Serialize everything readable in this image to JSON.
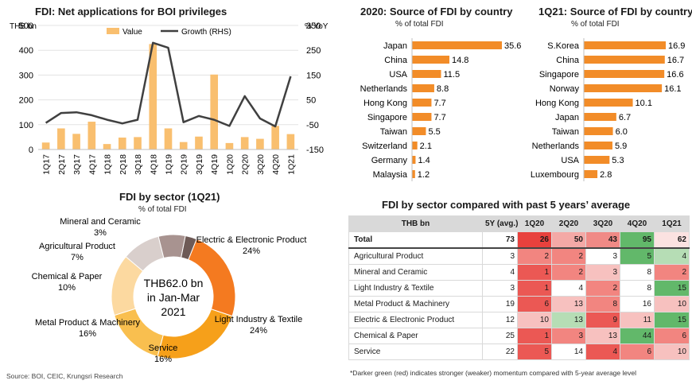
{
  "source": "Source: BOI, CEIC, Krungsri Research",
  "chart_data": [
    {
      "id": "net_applications",
      "type": "bar",
      "title": "FDI: Net applications for BOI privileges",
      "left_axis_label": "THB bn",
      "right_axis_label": "% YoY",
      "categories": [
        "1Q17",
        "2Q17",
        "3Q17",
        "4Q17",
        "1Q18",
        "2Q18",
        "3Q18",
        "4Q18",
        "1Q19",
        "2Q19",
        "3Q19",
        "4Q19",
        "1Q20",
        "2Q20",
        "3Q20",
        "4Q20",
        "1Q21"
      ],
      "ylim": [
        0,
        500
      ],
      "y2lim": [
        -150,
        350
      ],
      "yticks": [
        0,
        100,
        200,
        300,
        400,
        500
      ],
      "y2ticks": [
        -150,
        -50,
        50,
        150,
        250,
        350
      ],
      "series": [
        {
          "name": "Value",
          "type": "bar",
          "axis": "left",
          "color": "#f9bf6f",
          "values": [
            28,
            85,
            63,
            112,
            22,
            48,
            50,
            425,
            85,
            30,
            52,
            302,
            26,
            50,
            43,
            95,
            62
          ]
        },
        {
          "name": "Growth (RHS)",
          "type": "line",
          "axis": "right",
          "color": "#404040",
          "values": [
            -43,
            -3,
            0,
            -12,
            -30,
            -45,
            -30,
            280,
            260,
            -40,
            -15,
            -30,
            -55,
            65,
            -25,
            -57,
            145
          ]
        }
      ]
    },
    {
      "id": "source_2020",
      "type": "bar",
      "orientation": "horizontal",
      "title": "2020: Source of FDI by country",
      "subtitle": "% of total FDI",
      "color": "#f28c28",
      "categories": [
        "Japan",
        "China",
        "USA",
        "Netherlands",
        "Hong Kong",
        "Singapore",
        "Taiwan",
        "Switzerland",
        "Germany",
        "Malaysia"
      ],
      "values": [
        35.6,
        14.8,
        11.5,
        8.8,
        7.7,
        7.7,
        5.5,
        2.1,
        1.4,
        1.2
      ],
      "labels": [
        "35.6",
        "14.8",
        "11.5",
        "8.8",
        "7.7",
        "7.7",
        "5.5",
        "2.1",
        "1.4",
        "1.2"
      ]
    },
    {
      "id": "source_1q21",
      "type": "bar",
      "orientation": "horizontal",
      "title": "1Q21: Source of FDI by country",
      "subtitle": "% of total FDI",
      "color": "#f28c28",
      "categories": [
        "S.Korea",
        "China",
        "Singapore",
        "Norway",
        "Hong Kong",
        "Japan",
        "Taiwan",
        "Netherlands",
        "USA",
        "Luxembourg"
      ],
      "values": [
        16.9,
        16.7,
        16.6,
        16.1,
        10.1,
        6.7,
        6.0,
        5.9,
        5.3,
        2.8
      ],
      "labels": [
        "16.9",
        "16.7",
        "16.6",
        "16.1",
        "10.1",
        "6.7",
        "6.0",
        "5.9",
        "5.3",
        "2.8"
      ]
    },
    {
      "id": "sector_1q21",
      "type": "pie",
      "title": "FDI by sector (1Q21)",
      "subtitle": "% of total FDI",
      "center_text": [
        "THB62.0 bn",
        "in Jan-Mar",
        "2021"
      ],
      "slices": [
        {
          "name": "Electric & Electronic Product",
          "value": 24,
          "label": "24%",
          "color": "#f47a20"
        },
        {
          "name": "Light Industry & Textile",
          "value": 24,
          "label": "24%",
          "color": "#f6a01a"
        },
        {
          "name": "Service",
          "value": 16,
          "label": "16%",
          "color": "#f9bf4f"
        },
        {
          "name": "Metal Product & Machinery",
          "value": 16,
          "label": "16%",
          "color": "#fcd9a0"
        },
        {
          "name": "Chemical & Paper",
          "value": 10,
          "label": "10%",
          "color": "#d9cfcc"
        },
        {
          "name": "Agricultural Product",
          "value": 7,
          "label": "7%",
          "color": "#a89390"
        },
        {
          "name": "Mineral and Ceramic",
          "value": 3,
          "label": "3%",
          "color": "#6e5a56"
        }
      ]
    },
    {
      "id": "sector_vs_avg",
      "type": "table",
      "title": "FDI by sector compared with past 5 years’ average",
      "columns": [
        "THB bn",
        "5Y (avg.)",
        "1Q20",
        "2Q20",
        "3Q20",
        "4Q20",
        "1Q21"
      ],
      "rows": [
        {
          "label": "Total",
          "avg": "73",
          "cells": [
            {
              "v": "26",
              "c": "#e8413d"
            },
            {
              "v": "50",
              "c": "#f4a9a6"
            },
            {
              "v": "43",
              "c": "#f08a86"
            },
            {
              "v": "95",
              "c": "#62b86a"
            },
            {
              "v": "62",
              "c": "#fbe2e1"
            }
          ]
        },
        {
          "label": "Agricultural Product",
          "avg": "3",
          "cells": [
            {
              "v": "2",
              "c": "#f28580"
            },
            {
              "v": "2",
              "c": "#f28580"
            },
            {
              "v": "3",
              "c": "#ffffff"
            },
            {
              "v": "5",
              "c": "#62b86a"
            },
            {
              "v": "4",
              "c": "#b6ddb5"
            }
          ]
        },
        {
          "label": "Mineral and Ceramic",
          "avg": "4",
          "cells": [
            {
              "v": "1",
              "c": "#eb5854"
            },
            {
              "v": "2",
              "c": "#f28580"
            },
            {
              "v": "3",
              "c": "#f7c1bf"
            },
            {
              "v": "8",
              "c": "#ffffff"
            },
            {
              "v": "2",
              "c": "#f28580"
            }
          ]
        },
        {
          "label": "Light Industry & Textile",
          "avg": "3",
          "cells": [
            {
              "v": "1",
              "c": "#eb5854"
            },
            {
              "v": "4",
              "c": "#ffffff"
            },
            {
              "v": "2",
              "c": "#f28580"
            },
            {
              "v": "8",
              "c": "#ffffff"
            },
            {
              "v": "15",
              "c": "#62b86a"
            }
          ]
        },
        {
          "label": "Metal Product & Machinery",
          "avg": "19",
          "cells": [
            {
              "v": "6",
              "c": "#eb5854"
            },
            {
              "v": "13",
              "c": "#f7c1bf"
            },
            {
              "v": "8",
              "c": "#f28580"
            },
            {
              "v": "16",
              "c": "#ffffff"
            },
            {
              "v": "10",
              "c": "#f7c1bf"
            }
          ]
        },
        {
          "label": "Electric & Electronic Product",
          "avg": "12",
          "cells": [
            {
              "v": "10",
              "c": "#f7c1bf"
            },
            {
              "v": "13",
              "c": "#b6ddb5"
            },
            {
              "v": "9",
              "c": "#eb5854"
            },
            {
              "v": "11",
              "c": "#f7c1bf"
            },
            {
              "v": "15",
              "c": "#62b86a"
            }
          ]
        },
        {
          "label": "Chemical & Paper",
          "avg": "25",
          "cells": [
            {
              "v": "1",
              "c": "#eb5854"
            },
            {
              "v": "3",
              "c": "#f28580"
            },
            {
              "v": "13",
              "c": "#f7c1bf"
            },
            {
              "v": "44",
              "c": "#62b86a"
            },
            {
              "v": "6",
              "c": "#f28580"
            }
          ]
        },
        {
          "label": "Service",
          "avg": "22",
          "cells": [
            {
              "v": "5",
              "c": "#eb5854"
            },
            {
              "v": "14",
              "c": "#ffffff"
            },
            {
              "v": "4",
              "c": "#eb5854"
            },
            {
              "v": "6",
              "c": "#f28580"
            },
            {
              "v": "10",
              "c": "#f7c1bf"
            }
          ]
        }
      ],
      "note": "*Darker green (red) indicates stronger (weaker) momentum compared with 5-year average level"
    }
  ]
}
